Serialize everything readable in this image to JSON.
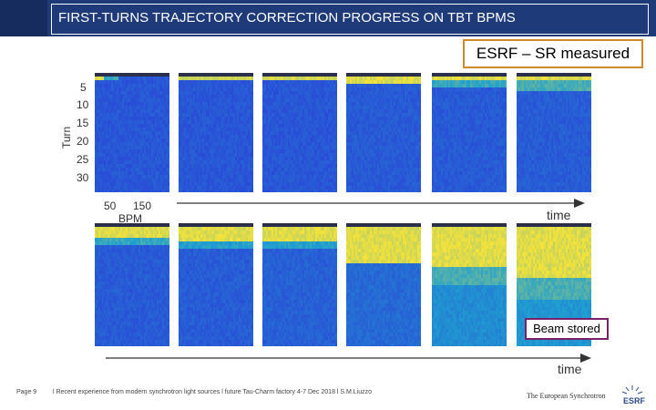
{
  "slide": {
    "title": "FIRST-TURNS TRAJECTORY CORRECTION PROGRESS ON TBT BPMS",
    "measured_label": "ESRF – SR measured",
    "stored_label": "Beam stored",
    "page_label": "Page 9",
    "footer_text": "l Recent experience from modern synchrotron light sources l future Tau-Charm factory 4-7 Dec 2018 l S.M.Liuzzo",
    "logo_caption": "The European Synchrotron",
    "logo_mark": "ESRF"
  },
  "plot_axes": {
    "ylabel": "Turn",
    "yticks": [
      "5",
      "10",
      "15",
      "20",
      "25",
      "30"
    ],
    "xlabel": "BPM",
    "xticks": [
      "50",
      "150"
    ],
    "time_label_top": "time",
    "time_label_bottom": "time"
  },
  "colors": {
    "title_bg": "#1f3a78",
    "heatmap_low": "#2b3fd8",
    "heatmap_mid": "#1fa0d0",
    "heatmap_high": "#f4e23a",
    "esrf_border": "#d08a2b",
    "stored_border": "#7a1f6a"
  }
}
